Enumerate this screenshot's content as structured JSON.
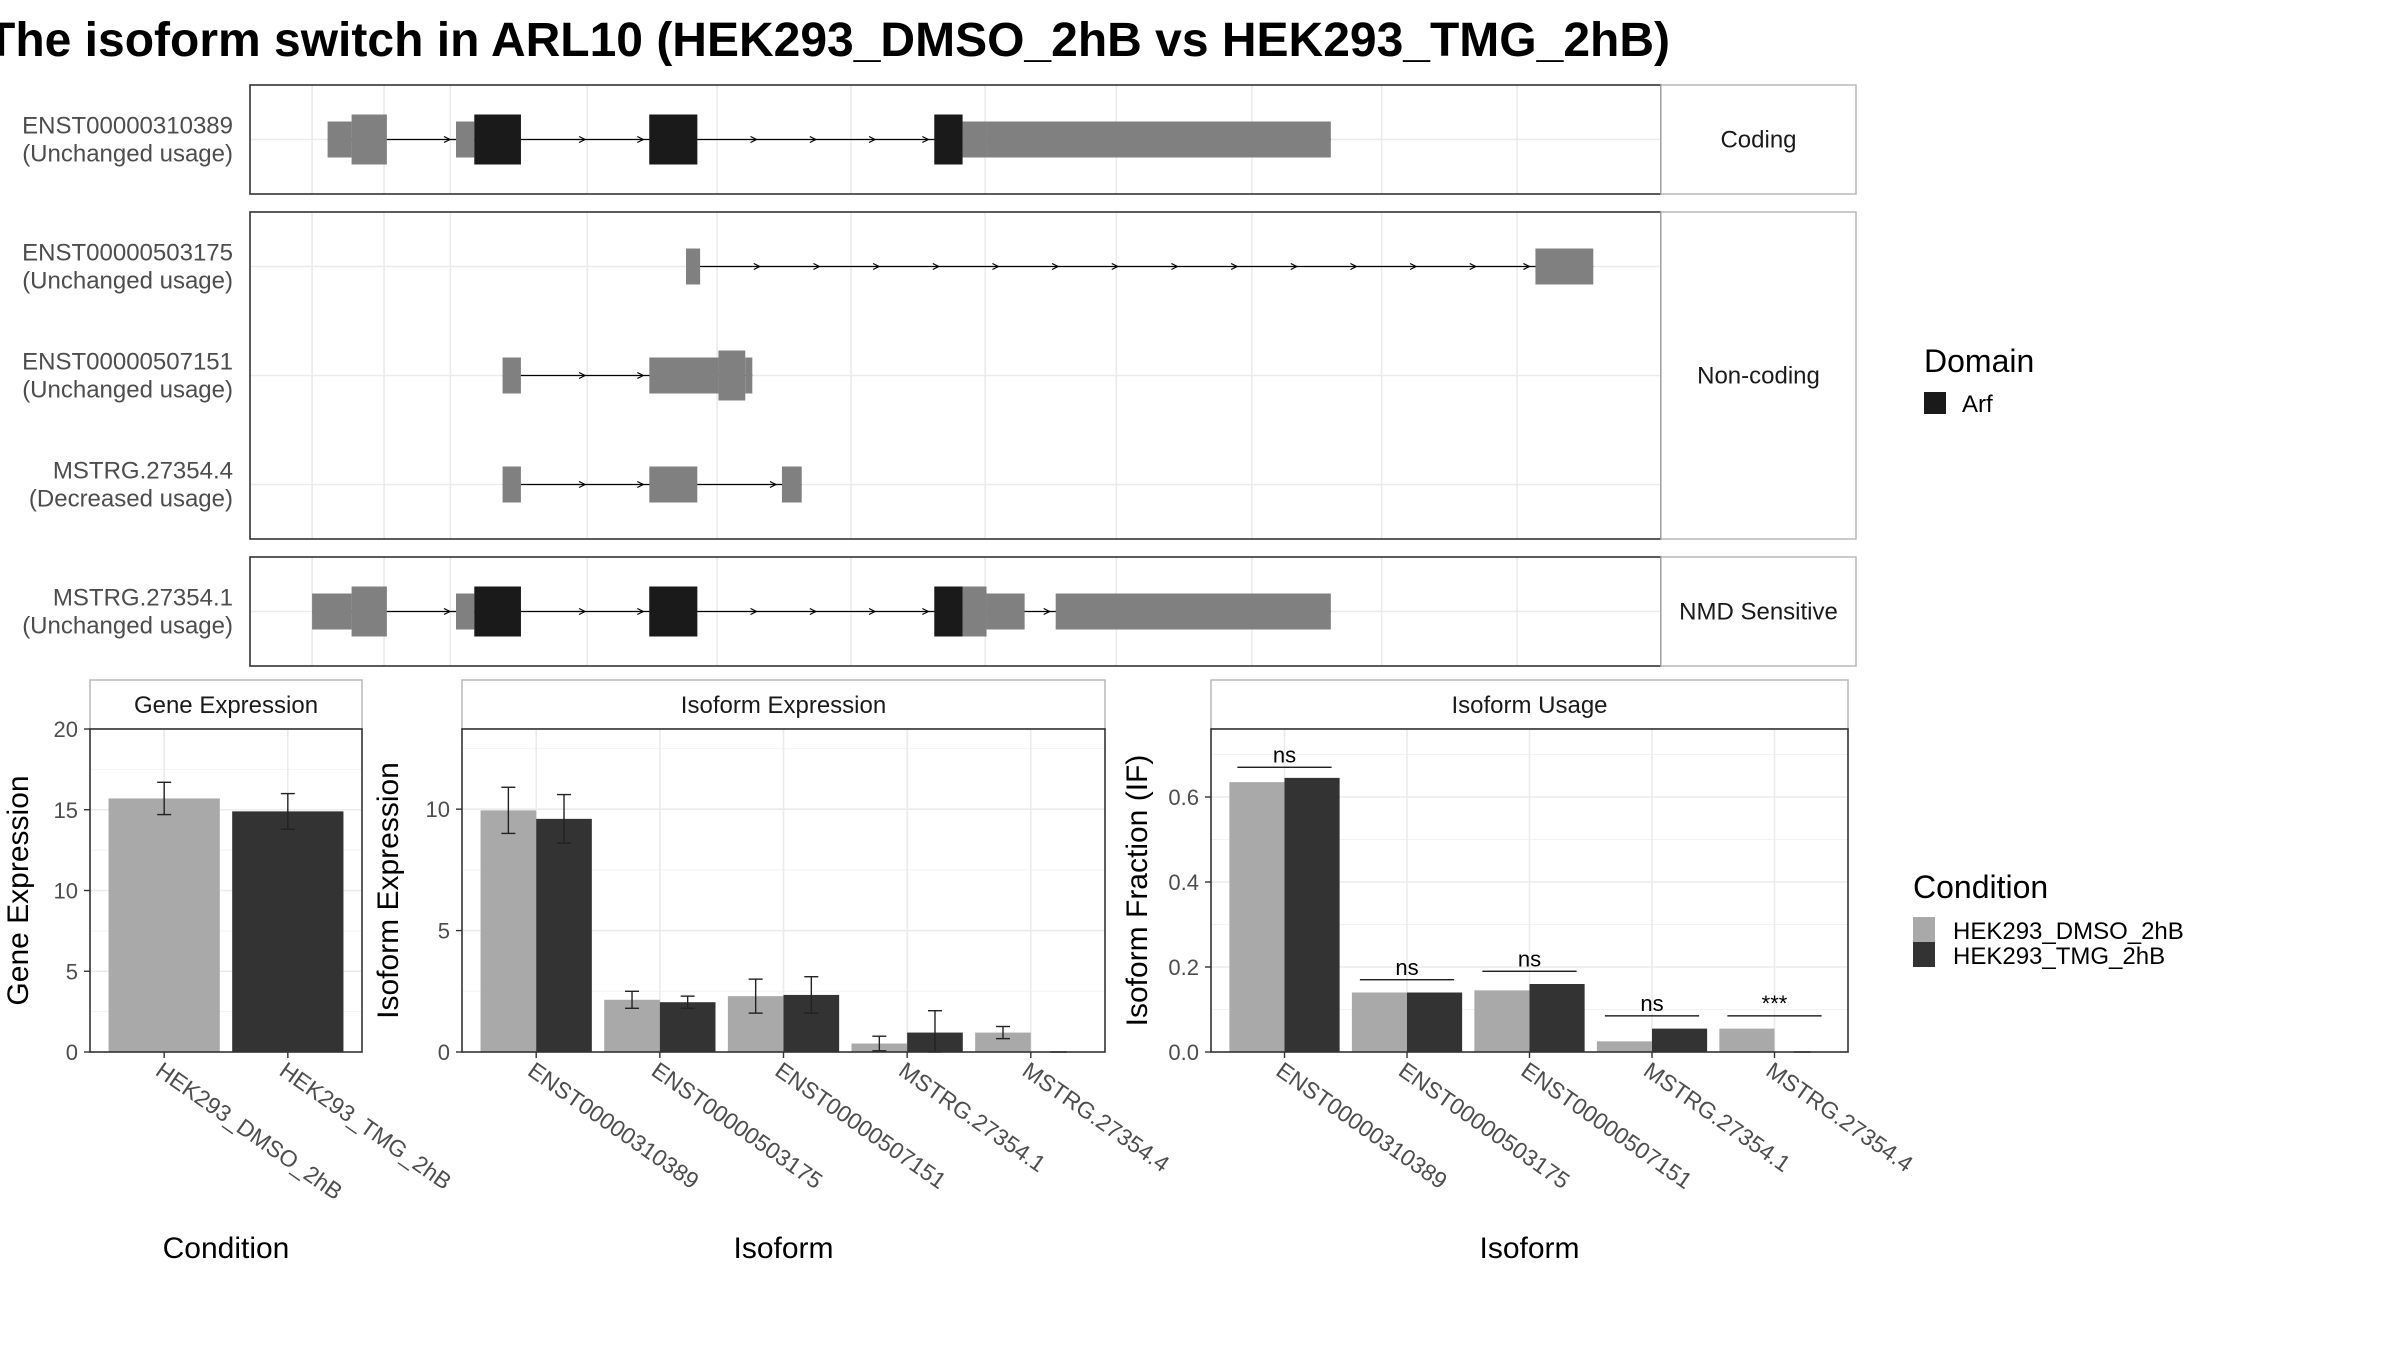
{
  "title": "The isoform switch in ARL10 (HEK293_DMSO_2hB vs HEK293_TMG_2hB)",
  "colors": {
    "exon": "#808080",
    "domain": "#1a1a1a",
    "dmso": "#a9a9a9",
    "tmg": "#333333",
    "grid": "#ebebeb",
    "panel_border": "#333333",
    "strip_border": "#b3b3b3"
  },
  "domain_legend": {
    "title": "Domain",
    "items": [
      {
        "label": "Arf"
      }
    ]
  },
  "condition_legend": {
    "title": "Condition",
    "items": [
      {
        "label": "HEK293_DMSO_2hB",
        "key": "dmso"
      },
      {
        "label": "HEK293_TMG_2hB",
        "key": "tmg"
      }
    ]
  },
  "structure": {
    "xrange": [
      0,
      100
    ],
    "facets": [
      {
        "label": "Coding",
        "transcripts": [
          {
            "id": "ENST00000310389",
            "usage": "(Unchanged usage)",
            "exons": [
              [
                5.5,
                7.2,
                "n"
              ],
              [
                7.2,
                9.7,
                "t"
              ],
              [
                14.6,
                15.9,
                "n"
              ],
              [
                15.9,
                19.2,
                "t"
              ],
              [
                28.3,
                31.7,
                "t"
              ],
              [
                48.5,
                50.5,
                "t"
              ],
              [
                50.5,
                52.2,
                "n"
              ],
              [
                52.2,
                76.6,
                "n"
              ]
            ],
            "domains": [
              [
                15.9,
                19.2
              ],
              [
                28.3,
                31.7
              ],
              [
                48.5,
                50.5
              ]
            ]
          }
        ]
      },
      {
        "label": "Non-coding",
        "transcripts": [
          {
            "id": "ENST00000503175",
            "usage": "(Unchanged usage)",
            "exons": [
              [
                30.9,
                31.9,
                "n"
              ],
              [
                91.1,
                95.2,
                "n"
              ]
            ],
            "domains": []
          },
          {
            "id": "ENST00000507151",
            "usage": "(Unchanged usage)",
            "exons": [
              [
                17.9,
                19.2,
                "n"
              ],
              [
                28.3,
                33.2,
                "n"
              ],
              [
                33.2,
                35.1,
                "t"
              ],
              [
                35.1,
                35.6,
                "n"
              ]
            ],
            "domains": []
          },
          {
            "id": "MSTRG.27354.4",
            "usage": "(Decreased usage)",
            "exons": [
              [
                17.9,
                19.2,
                "n"
              ],
              [
                28.3,
                31.7,
                "n"
              ],
              [
                37.7,
                39.1,
                "n"
              ]
            ],
            "domains": []
          }
        ]
      },
      {
        "label": "NMD Sensitive",
        "transcripts": [
          {
            "id": "MSTRG.27354.1",
            "usage": "(Unchanged usage)",
            "exons": [
              [
                4.4,
                7.2,
                "n"
              ],
              [
                7.2,
                9.7,
                "t"
              ],
              [
                14.6,
                15.9,
                "n"
              ],
              [
                15.9,
                19.2,
                "t"
              ],
              [
                28.3,
                31.7,
                "t"
              ],
              [
                48.5,
                50.5,
                "t"
              ],
              [
                50.5,
                52.2,
                "t"
              ],
              [
                52.2,
                54.9,
                "n"
              ],
              [
                57.1,
                76.6,
                "n"
              ]
            ],
            "domains": [
              [
                15.9,
                19.2
              ],
              [
                28.3,
                31.7
              ],
              [
                48.5,
                50.5
              ]
            ]
          }
        ]
      }
    ]
  },
  "chart_data": [
    {
      "type": "bar",
      "title": "Gene Expression",
      "xlabel": "Condition",
      "ylabel": "Gene Expression",
      "ylim": [
        0,
        20
      ],
      "yticks": [
        0,
        5,
        10,
        15,
        20
      ],
      "categories": [
        "HEK293_DMSO_2hB",
        "HEK293_TMG_2hB"
      ],
      "values": [
        15.7,
        14.9
      ],
      "errors": [
        1.0,
        1.1
      ],
      "fill_keys": [
        "dmso",
        "tmg"
      ]
    },
    {
      "type": "bar",
      "title": "Isoform Expression",
      "xlabel": "Isoform",
      "ylabel": "Isoform Expression",
      "ylim": [
        0,
        13.3
      ],
      "yticks": [
        0,
        5,
        10
      ],
      "categories": [
        "ENST00000310389",
        "ENST00000503175",
        "ENST00000507151",
        "MSTRG.27354.1",
        "MSTRG.27354.4"
      ],
      "series": [
        {
          "name": "HEK293_DMSO_2hB",
          "key": "dmso",
          "values": [
            9.95,
            2.15,
            2.3,
            0.35,
            0.8
          ],
          "errors": [
            0.95,
            0.35,
            0.7,
            0.3,
            0.25
          ]
        },
        {
          "name": "HEK293_TMG_2hB",
          "key": "tmg",
          "values": [
            9.6,
            2.05,
            2.35,
            0.8,
            0.0
          ],
          "errors": [
            1.0,
            0.25,
            0.75,
            0.9,
            0.0
          ]
        }
      ]
    },
    {
      "type": "bar",
      "title": "Isoform Usage",
      "xlabel": "Isoform",
      "ylabel": "Isoform Fraction (IF)",
      "ylim": [
        0,
        0.76
      ],
      "yticks": [
        0,
        0.2,
        0.4,
        0.6
      ],
      "ytick_labels": [
        "0.0",
        "0.2",
        "0.4",
        "0.6"
      ],
      "categories": [
        "ENST00000310389",
        "ENST00000503175",
        "ENST00000507151",
        "MSTRG.27354.1",
        "MSTRG.27354.4"
      ],
      "series": [
        {
          "name": "HEK293_DMSO_2hB",
          "key": "dmso",
          "values": [
            0.635,
            0.14,
            0.145,
            0.025,
            0.055
          ]
        },
        {
          "name": "HEK293_TMG_2hB",
          "key": "tmg",
          "values": [
            0.645,
            0.14,
            0.16,
            0.055,
            0.0
          ]
        }
      ],
      "significance": [
        "ns",
        "ns",
        "ns",
        "ns",
        "***"
      ],
      "significance_y": [
        0.67,
        0.17,
        0.19,
        0.085,
        0.085
      ]
    }
  ]
}
